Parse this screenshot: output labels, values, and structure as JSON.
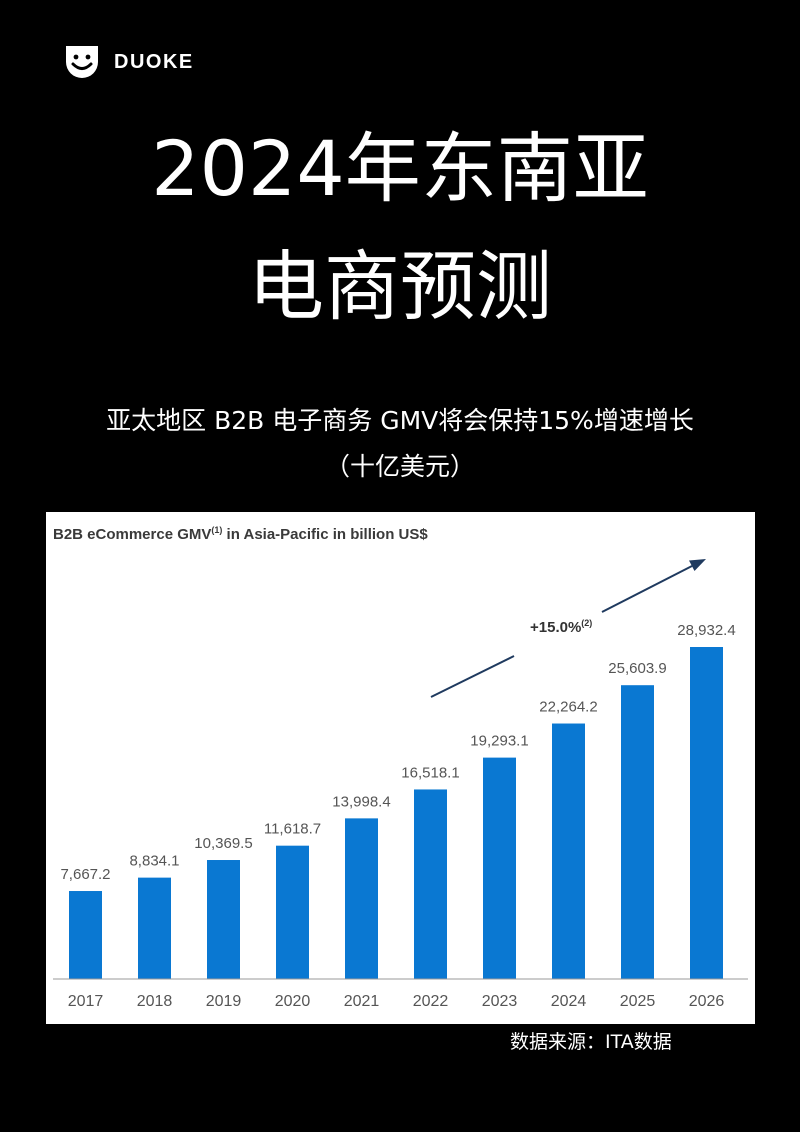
{
  "brand": {
    "name": "DUOKE",
    "logo_icon": "smiley-face-icon"
  },
  "page": {
    "title_line1": "2024年东南亚",
    "title_line2": "电商预测",
    "subtitle_line1": "亚太地区 B2B 电子商务 GMV将会保持15%增速增长",
    "subtitle_line2": "（十亿美元）",
    "source": "数据来源：ITA数据"
  },
  "chart_data": {
    "type": "bar",
    "title": "B2B eCommerce GMV",
    "title_sup": "(1)",
    "title_rest": " in Asia-Pacific in billion US$",
    "categories": [
      "2017",
      "2018",
      "2019",
      "2020",
      "2021",
      "2022",
      "2023",
      "2024",
      "2025",
      "2026"
    ],
    "values": [
      7667.2,
      8834.1,
      10369.5,
      11618.7,
      13998.4,
      16518.1,
      19293.1,
      22264.2,
      25603.9,
      28932.4
    ],
    "value_labels": [
      "7,667.2",
      "8,834.1",
      "10,369.5",
      "11,618.7",
      "13,998.4",
      "16,518.1",
      "19,293.1",
      "22,264.2",
      "25,603.9",
      "28,932.4"
    ],
    "growth_annotation": "+15.0%",
    "growth_sup": "(2)",
    "ylim": [
      0,
      30000
    ],
    "grid": false,
    "colors": {
      "bar": "#0a78d2",
      "arrow": "#1f3a5f",
      "text": "#555555",
      "title": "#3a3a3a"
    }
  }
}
